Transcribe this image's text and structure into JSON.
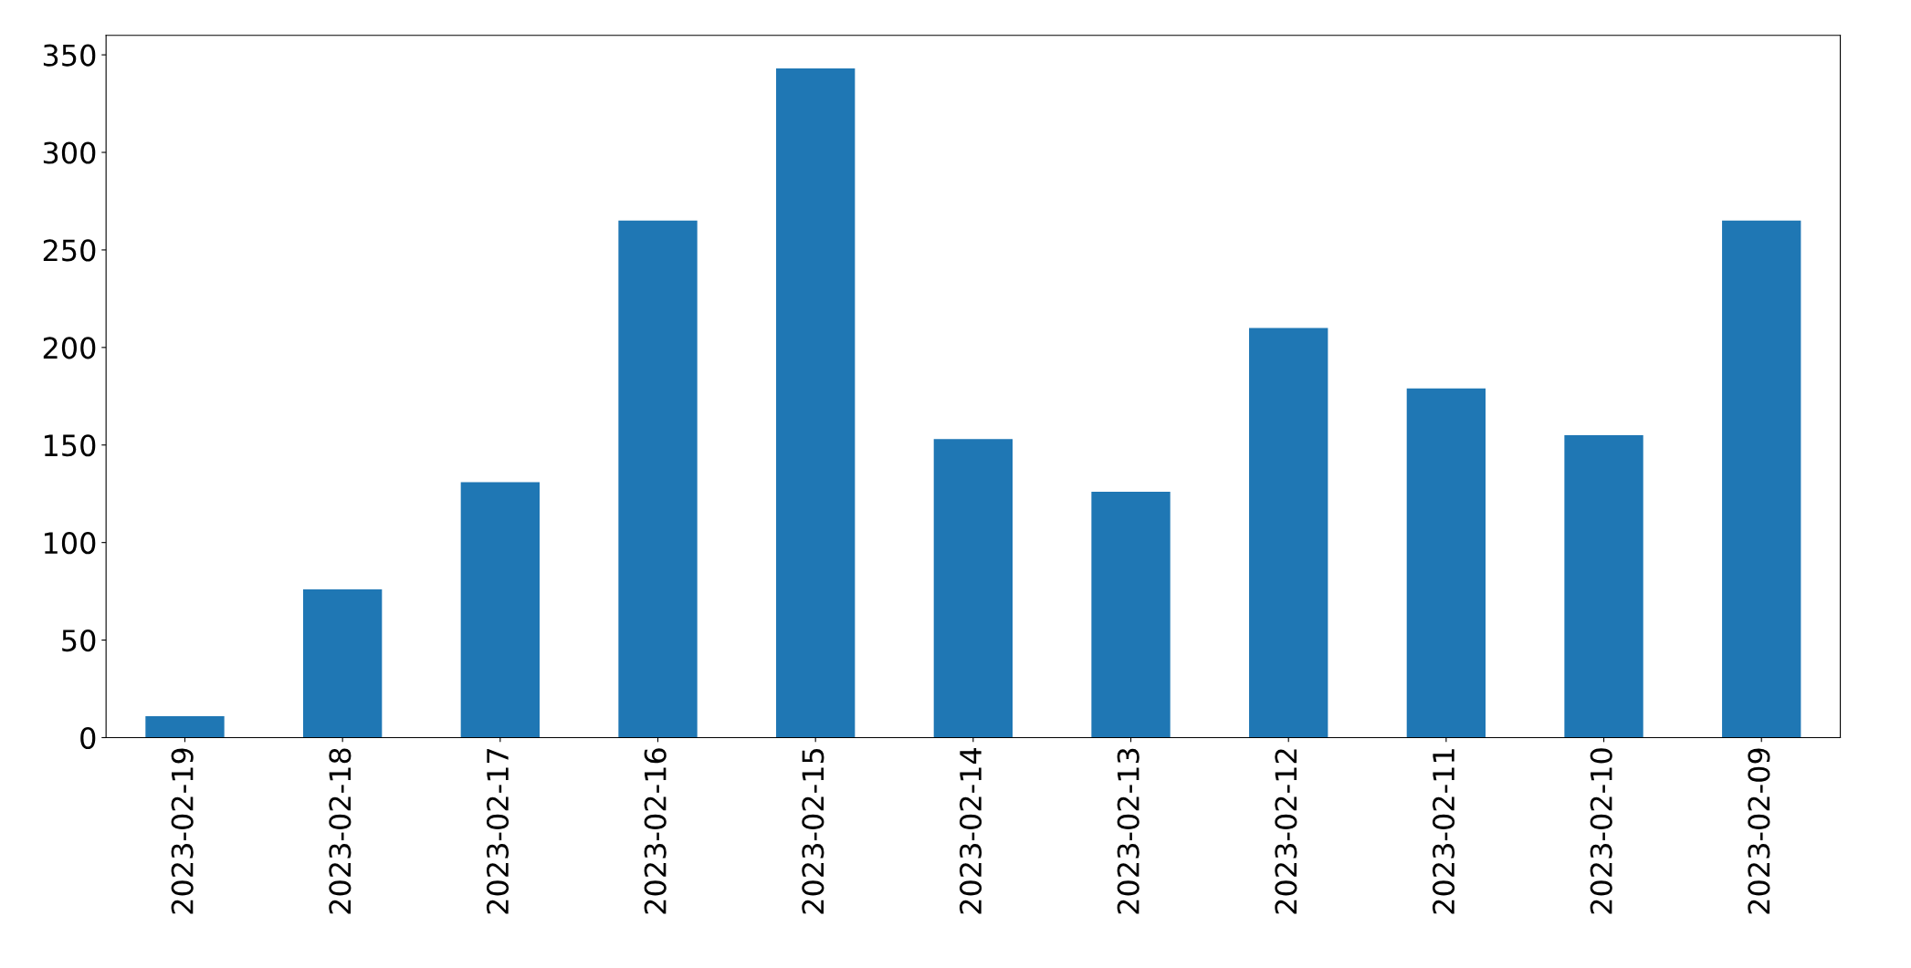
{
  "chart_data": {
    "type": "bar",
    "categories": [
      "2023-02-19",
      "2023-02-18",
      "2023-02-17",
      "2023-02-16",
      "2023-02-15",
      "2023-02-14",
      "2023-02-13",
      "2023-02-12",
      "2023-02-11",
      "2023-02-10",
      "2023-02-09"
    ],
    "values": [
      11,
      76,
      131,
      265,
      343,
      153,
      126,
      210,
      179,
      155,
      265
    ],
    "color": "#1f77b4",
    "ylim": [
      0,
      360
    ],
    "yticks": [
      0,
      50,
      100,
      150,
      200,
      250,
      300,
      350
    ],
    "grid": false,
    "legend": false
  }
}
